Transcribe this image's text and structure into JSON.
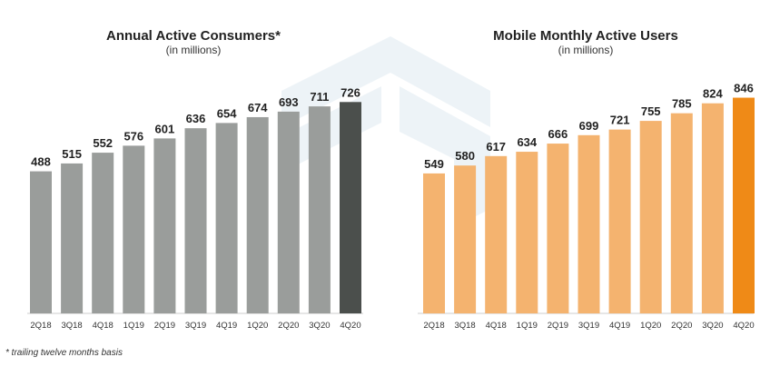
{
  "chart_data": [
    {
      "type": "bar",
      "title": "Annual Active Consumers*",
      "subtitle": "(in millions)",
      "xlabel": "",
      "ylabel": "",
      "categories": [
        "2Q18",
        "3Q18",
        "4Q18",
        "1Q19",
        "2Q19",
        "3Q19",
        "4Q19",
        "1Q20",
        "2Q20",
        "3Q20",
        "4Q20"
      ],
      "values": [
        488,
        515,
        552,
        576,
        601,
        636,
        654,
        674,
        693,
        711,
        726
      ],
      "ylim": [
        0,
        780
      ],
      "grid": false,
      "colors": {
        "bar": "#9a9d9b",
        "highlight": "#4b4f4c"
      },
      "highlight_index": 10
    },
    {
      "type": "bar",
      "title": "Mobile Monthly Active Users",
      "subtitle": "(in millions)",
      "xlabel": "",
      "ylabel": "",
      "categories": [
        "2Q18",
        "3Q18",
        "4Q18",
        "1Q19",
        "2Q19",
        "3Q19",
        "4Q19",
        "1Q20",
        "2Q20",
        "3Q20",
        "4Q20"
      ],
      "values": [
        549,
        580,
        617,
        634,
        666,
        699,
        721,
        755,
        785,
        824,
        846
      ],
      "ylim": [
        0,
        880
      ],
      "grid": false,
      "colors": {
        "bar": "#f4b36f",
        "highlight": "#ef8a17"
      },
      "highlight_index": 10
    }
  ],
  "footnote": "* trailing twelve months basis"
}
